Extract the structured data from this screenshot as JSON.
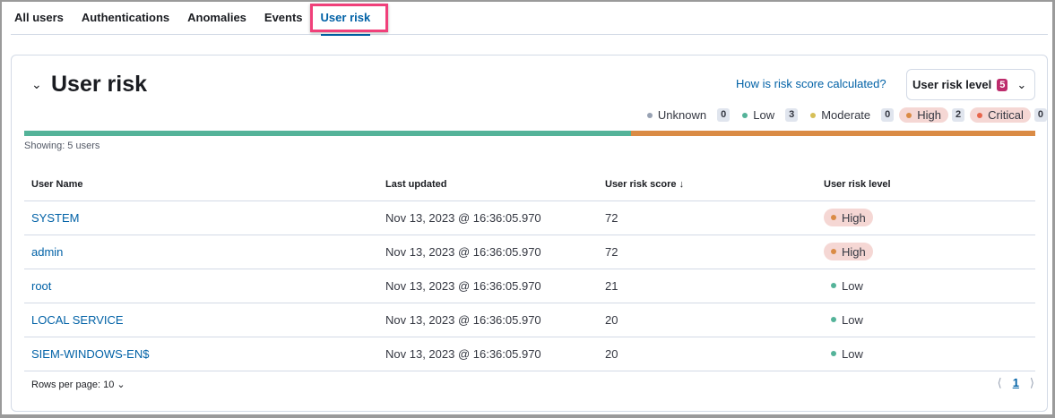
{
  "tabs": [
    {
      "label": "All users"
    },
    {
      "label": "Authentications"
    },
    {
      "label": "Anomalies"
    },
    {
      "label": "Events"
    },
    {
      "label": "User risk",
      "active": true
    }
  ],
  "panel": {
    "title": "User risk",
    "how_link": "How is risk score calculated?",
    "filter_label": "User risk level",
    "filter_count": "5",
    "showing": "Showing: 5 users"
  },
  "legend": [
    {
      "label": "Unknown",
      "count": "0",
      "color": "#98a2b3"
    },
    {
      "label": "Low",
      "count": "3",
      "color": "#54b399"
    },
    {
      "label": "Moderate",
      "count": "0",
      "color": "#d6bf57"
    },
    {
      "label": "High",
      "count": "2",
      "color": "#da8b45",
      "bg": "#f5d7d4"
    },
    {
      "label": "Critical",
      "count": "0",
      "color": "#e7664c",
      "bg": "#f5d7d4"
    }
  ],
  "distribution": [
    {
      "level": "Low",
      "fraction": 0.6,
      "color": "#54b399"
    },
    {
      "level": "High",
      "fraction": 0.4,
      "color": "#da8b45"
    }
  ],
  "table": {
    "headers": [
      "User Name",
      "Last updated",
      "User risk score",
      "User risk level"
    ],
    "sort_icon": "arrow-down-icon",
    "rows": [
      {
        "name": "SYSTEM",
        "updated": "Nov 13, 2023 @ 16:36:05.970",
        "score": "72",
        "level": "High"
      },
      {
        "name": "admin",
        "updated": "Nov 13, 2023 @ 16:36:05.970",
        "score": "72",
        "level": "High"
      },
      {
        "name": "root",
        "updated": "Nov 13, 2023 @ 16:36:05.970",
        "score": "21",
        "level": "Low"
      },
      {
        "name": "LOCAL SERVICE",
        "updated": "Nov 13, 2023 @ 16:36:05.970",
        "score": "20",
        "level": "Low"
      },
      {
        "name": "SIEM-WINDOWS-EN$",
        "updated": "Nov 13, 2023 @ 16:36:05.970",
        "score": "20",
        "level": "Low"
      }
    ]
  },
  "footer": {
    "rows_per_page": "Rows per page: 10",
    "page": "1"
  }
}
